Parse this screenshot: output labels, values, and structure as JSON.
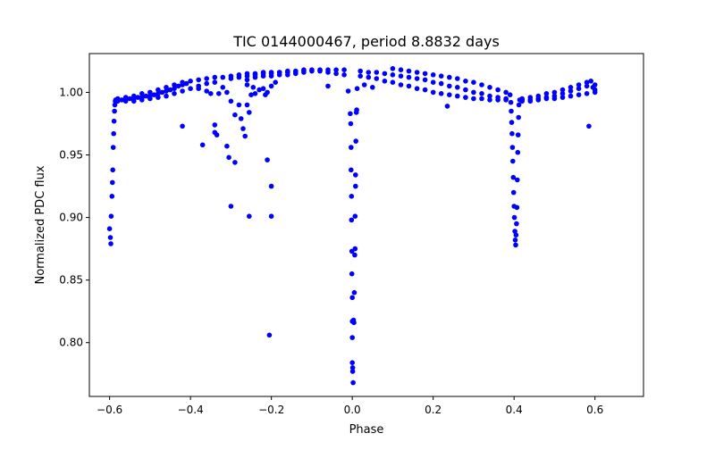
{
  "chart_data": {
    "type": "scatter",
    "title": "TIC 0144000467, period 8.8832 days",
    "xlabel": "Phase",
    "ylabel": "Normalized PDC flux",
    "xlim": [
      -0.65,
      0.72
    ],
    "ylim": [
      0.757,
      1.031
    ],
    "xticks": [
      -0.6,
      -0.4,
      -0.2,
      0.0,
      0.2,
      0.4,
      0.6
    ],
    "xtick_labels": [
      "−0.6",
      "−0.4",
      "−0.2",
      "0.0",
      "0.2",
      "0.4",
      "0.6"
    ],
    "yticks": [
      0.8,
      0.85,
      0.9,
      0.95,
      1.0
    ],
    "ytick_labels": [
      "0.80",
      "0.85",
      "0.90",
      "0.95",
      "1.00"
    ],
    "grid": false,
    "point_color": "#0000ff",
    "series": [
      {
        "points": [
          [
            -0.6,
            0.891
          ],
          [
            -0.598,
            0.884
          ],
          [
            -0.597,
            0.879
          ],
          [
            -0.596,
            0.901
          ],
          [
            -0.594,
            0.917
          ],
          [
            -0.593,
            0.928
          ],
          [
            -0.592,
            0.938
          ],
          [
            -0.591,
            0.956
          ],
          [
            -0.59,
            0.967
          ],
          [
            -0.589,
            0.977
          ],
          [
            -0.588,
            0.985
          ],
          [
            -0.587,
            0.99
          ],
          [
            -0.586,
            0.993
          ],
          [
            -0.585,
            0.994
          ],
          [
            -0.58,
            0.994
          ],
          [
            -0.57,
            0.994
          ],
          [
            -0.56,
            0.995
          ],
          [
            -0.55,
            0.995
          ],
          [
            -0.54,
            0.995
          ],
          [
            -0.53,
            0.996
          ],
          [
            -0.52,
            0.996
          ],
          [
            -0.51,
            0.997
          ],
          [
            -0.5,
            0.997
          ],
          [
            -0.49,
            0.998
          ],
          [
            -0.48,
            0.999
          ],
          [
            -0.47,
            1.0
          ],
          [
            -0.46,
            1.001
          ],
          [
            -0.45,
            1.002
          ],
          [
            -0.44,
            1.003
          ],
          [
            -0.43,
            1.005
          ],
          [
            -0.42,
            1.006
          ],
          [
            -0.41,
            1.007
          ],
          [
            -0.58,
            0.993
          ],
          [
            -0.56,
            0.993
          ],
          [
            -0.54,
            0.993
          ],
          [
            -0.52,
            0.994
          ],
          [
            -0.5,
            0.995
          ],
          [
            -0.48,
            0.996
          ],
          [
            -0.46,
            0.997
          ],
          [
            -0.44,
            0.999
          ],
          [
            -0.42,
            1.001
          ],
          [
            -0.4,
            1.003
          ],
          [
            -0.38,
            1.005
          ],
          [
            -0.36,
            1.007
          ],
          [
            -0.34,
            1.008
          ],
          [
            -0.58,
            0.995
          ],
          [
            -0.56,
            0.996
          ],
          [
            -0.54,
            0.997
          ],
          [
            -0.52,
            0.999
          ],
          [
            -0.5,
            1.0
          ],
          [
            -0.48,
            1.002
          ],
          [
            -0.46,
            1.004
          ],
          [
            -0.44,
            1.006
          ],
          [
            -0.42,
            1.008
          ],
          [
            -0.4,
            1.009
          ],
          [
            -0.38,
            1.01
          ],
          [
            -0.36,
            1.011
          ],
          [
            -0.34,
            1.012
          ],
          [
            -0.32,
            1.012
          ],
          [
            -0.3,
            1.013
          ],
          [
            -0.28,
            1.014
          ],
          [
            -0.26,
            1.015
          ],
          [
            -0.24,
            1.015
          ],
          [
            -0.22,
            1.016
          ],
          [
            -0.2,
            1.016
          ],
          [
            -0.18,
            1.016
          ],
          [
            -0.16,
            1.017
          ],
          [
            -0.14,
            1.017
          ],
          [
            -0.12,
            1.018
          ],
          [
            -0.1,
            1.018
          ],
          [
            -0.08,
            1.018
          ],
          [
            -0.06,
            1.018
          ],
          [
            -0.04,
            1.018
          ],
          [
            -0.02,
            1.018
          ],
          [
            -0.3,
            1.011
          ],
          [
            -0.28,
            1.012
          ],
          [
            -0.26,
            1.013
          ],
          [
            -0.24,
            1.014
          ],
          [
            -0.22,
            1.015
          ],
          [
            -0.2,
            1.015
          ],
          [
            -0.18,
            1.016
          ],
          [
            -0.16,
            1.016
          ],
          [
            -0.14,
            1.016
          ],
          [
            -0.12,
            1.017
          ],
          [
            -0.1,
            1.017
          ],
          [
            -0.08,
            1.017
          ],
          [
            -0.06,
            1.016
          ],
          [
            -0.04,
            1.015
          ],
          [
            -0.02,
            1.014
          ],
          [
            -0.26,
            1.01
          ],
          [
            -0.24,
            1.012
          ],
          [
            -0.22,
            1.013
          ],
          [
            -0.2,
            1.013
          ],
          [
            -0.18,
            1.014
          ],
          [
            -0.16,
            1.014
          ],
          [
            -0.14,
            1.015
          ],
          [
            -0.12,
            1.016
          ],
          [
            -0.42,
            0.973
          ],
          [
            -0.37,
            0.958
          ],
          [
            -0.34,
            0.974
          ],
          [
            -0.34,
            0.968
          ],
          [
            -0.335,
            0.966
          ],
          [
            -0.33,
            0.999
          ],
          [
            -0.32,
            1.004
          ],
          [
            -0.31,
            0.957
          ],
          [
            -0.305,
            0.948
          ],
          [
            -0.29,
            0.944
          ],
          [
            -0.3,
            0.993
          ],
          [
            -0.29,
            0.982
          ],
          [
            -0.28,
            0.99
          ],
          [
            -0.275,
            0.979
          ],
          [
            -0.27,
            0.971
          ],
          [
            -0.265,
            0.965
          ],
          [
            -0.26,
            0.99
          ],
          [
            -0.255,
            0.984
          ],
          [
            -0.25,
            0.998
          ],
          [
            -0.245,
            1.004
          ],
          [
            -0.24,
            0.999
          ],
          [
            -0.23,
            1.002
          ],
          [
            -0.22,
            1.003
          ],
          [
            -0.215,
            0.998
          ],
          [
            -0.21,
            1.0
          ],
          [
            -0.2,
            1.005
          ],
          [
            -0.19,
            1.008
          ],
          [
            -0.3,
            0.909
          ],
          [
            -0.255,
            0.901
          ],
          [
            -0.2,
            0.901
          ],
          [
            -0.2,
            0.925
          ],
          [
            -0.21,
            0.946
          ],
          [
            -0.205,
            0.806
          ],
          [
            -0.31,
            1.0
          ],
          [
            -0.26,
            1.006
          ],
          [
            -0.36,
            1.001
          ],
          [
            -0.38,
            1.003
          ],
          [
            -0.35,
            0.999
          ],
          [
            -0.06,
            1.005
          ],
          [
            -0.01,
            1.001
          ],
          [
            -0.005,
            0.983
          ],
          [
            -0.004,
            0.975
          ],
          [
            -0.003,
            0.956
          ],
          [
            -0.003,
            0.938
          ],
          [
            -0.002,
            0.917
          ],
          [
            -0.002,
            0.898
          ],
          [
            -0.001,
            0.873
          ],
          [
            -0.001,
            0.855
          ],
          [
            0.0,
            0.836
          ],
          [
            0.0,
            0.817
          ],
          [
            0.0,
            0.804
          ],
          [
            0.0,
            0.784
          ],
          [
            0.001,
            0.78
          ],
          [
            0.001,
            0.777
          ],
          [
            0.002,
            0.768
          ],
          [
            0.003,
            0.818
          ],
          [
            0.004,
            0.816
          ],
          [
            0.005,
            0.84
          ],
          [
            0.006,
            0.87
          ],
          [
            0.007,
            0.875
          ],
          [
            0.007,
            0.901
          ],
          [
            0.008,
            0.925
          ],
          [
            0.008,
            0.934
          ],
          [
            0.009,
            0.961
          ],
          [
            0.01,
            0.984
          ],
          [
            0.011,
            0.986
          ],
          [
            0.012,
            1.003
          ],
          [
            0.02,
            1.017
          ],
          [
            0.04,
            1.016
          ],
          [
            0.06,
            1.016
          ],
          [
            0.08,
            1.015
          ],
          [
            0.1,
            1.014
          ],
          [
            0.12,
            1.013
          ],
          [
            0.14,
            1.012
          ],
          [
            0.16,
            1.011
          ],
          [
            0.18,
            1.01
          ],
          [
            0.2,
            1.008
          ],
          [
            0.22,
            1.007
          ],
          [
            0.24,
            1.005
          ],
          [
            0.26,
            1.004
          ],
          [
            0.28,
            1.002
          ],
          [
            0.3,
            1.0
          ],
          [
            0.32,
            0.999
          ],
          [
            0.34,
            0.997
          ],
          [
            0.36,
            0.996
          ],
          [
            0.38,
            0.995
          ],
          [
            0.02,
            1.013
          ],
          [
            0.04,
            1.012
          ],
          [
            0.06,
            1.011
          ],
          [
            0.08,
            1.009
          ],
          [
            0.1,
            1.008
          ],
          [
            0.12,
            1.006
          ],
          [
            0.14,
            1.005
          ],
          [
            0.16,
            1.003
          ],
          [
            0.18,
            1.002
          ],
          [
            0.2,
            1.0
          ],
          [
            0.22,
            0.999
          ],
          [
            0.24,
            0.998
          ],
          [
            0.26,
            0.997
          ],
          [
            0.28,
            0.996
          ],
          [
            0.3,
            0.995
          ],
          [
            0.32,
            0.995
          ],
          [
            0.34,
            0.994
          ],
          [
            0.36,
            0.994
          ],
          [
            0.38,
            0.994
          ],
          [
            0.1,
            1.019
          ],
          [
            0.12,
            1.018
          ],
          [
            0.14,
            1.017
          ],
          [
            0.16,
            1.016
          ],
          [
            0.18,
            1.015
          ],
          [
            0.2,
            1.014
          ],
          [
            0.22,
            1.013
          ],
          [
            0.24,
            1.012
          ],
          [
            0.26,
            1.011
          ],
          [
            0.28,
            1.009
          ],
          [
            0.3,
            1.008
          ],
          [
            0.32,
            1.006
          ],
          [
            0.34,
            1.004
          ],
          [
            0.36,
            1.002
          ],
          [
            0.38,
            1.0
          ],
          [
            0.39,
            0.998
          ],
          [
            0.03,
            1.006
          ],
          [
            0.05,
            1.004
          ],
          [
            0.235,
            0.989
          ],
          [
            0.392,
            0.992
          ],
          [
            0.393,
            0.985
          ],
          [
            0.394,
            0.976
          ],
          [
            0.395,
            0.967
          ],
          [
            0.396,
            0.956
          ],
          [
            0.397,
            0.945
          ],
          [
            0.398,
            0.932
          ],
          [
            0.399,
            0.92
          ],
          [
            0.4,
            0.909
          ],
          [
            0.401,
            0.9
          ],
          [
            0.402,
            0.889
          ],
          [
            0.403,
            0.882
          ],
          [
            0.404,
            0.878
          ],
          [
            0.405,
            0.886
          ],
          [
            0.406,
            0.895
          ],
          [
            0.407,
            0.908
          ],
          [
            0.408,
            0.93
          ],
          [
            0.409,
            0.952
          ],
          [
            0.41,
            0.966
          ],
          [
            0.411,
            0.98
          ],
          [
            0.412,
            0.99
          ],
          [
            0.414,
            0.994
          ],
          [
            0.42,
            0.994
          ],
          [
            0.44,
            0.994
          ],
          [
            0.46,
            0.995
          ],
          [
            0.48,
            0.996
          ],
          [
            0.5,
            0.997
          ],
          [
            0.52,
            0.999
          ],
          [
            0.54,
            1.001
          ],
          [
            0.56,
            1.003
          ],
          [
            0.58,
            1.005
          ],
          [
            0.6,
            1.006
          ],
          [
            0.42,
            0.995
          ],
          [
            0.44,
            0.996
          ],
          [
            0.46,
            0.997
          ],
          [
            0.48,
            0.999
          ],
          [
            0.5,
            1.0
          ],
          [
            0.52,
            1.002
          ],
          [
            0.54,
            1.004
          ],
          [
            0.56,
            1.006
          ],
          [
            0.58,
            1.008
          ],
          [
            0.59,
            1.009
          ],
          [
            0.42,
            0.993
          ],
          [
            0.44,
            0.993
          ],
          [
            0.46,
            0.994
          ],
          [
            0.48,
            0.995
          ],
          [
            0.5,
            0.995
          ],
          [
            0.52,
            0.996
          ],
          [
            0.54,
            0.997
          ],
          [
            0.56,
            0.998
          ],
          [
            0.58,
            0.999
          ],
          [
            0.6,
            1.0
          ],
          [
            0.6,
            1.002
          ],
          [
            0.595,
            1.004
          ],
          [
            0.585,
            0.973
          ]
        ]
      }
    ]
  }
}
